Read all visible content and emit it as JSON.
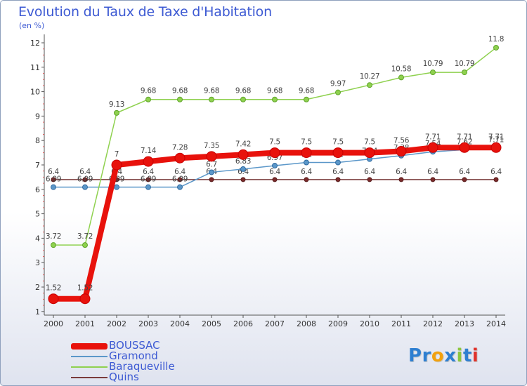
{
  "title": "Evolution du Taux de Taxe d'Habitation",
  "unit": "(en %)",
  "logo": {
    "text": "Proxiti",
    "letters": [
      {
        "ch": "P",
        "color": "#2e7fd1"
      },
      {
        "ch": "r",
        "color": "#2e7fd1"
      },
      {
        "ch": "o",
        "color": "#f2a10e"
      },
      {
        "ch": "x",
        "color": "#2e7fd1"
      },
      {
        "ch": "i",
        "color": "#8cc63f"
      },
      {
        "ch": "t",
        "color": "#2e7fd1"
      },
      {
        "ch": "i",
        "color": "#e0322b"
      }
    ]
  },
  "chart_data": {
    "type": "line",
    "title": "Evolution du Taux de Taxe d'Habitation",
    "ylabel": "(en %)",
    "x": [
      "2000",
      "2001",
      "2002",
      "2003",
      "2004",
      "2005",
      "2006",
      "2007",
      "2008",
      "2009",
      "2010",
      "2011",
      "2012",
      "2013",
      "2014"
    ],
    "yticks": [
      1,
      2,
      3,
      4,
      5,
      6,
      7,
      8,
      9,
      10,
      11,
      12
    ],
    "ylim": [
      1,
      12
    ],
    "grid": false,
    "legend_position": "bottom-left",
    "series": [
      {
        "name": "Quins",
        "color": "#7a3b3b",
        "values": [
          6.4,
          6.4,
          6.4,
          6.4,
          6.4,
          6.4,
          6.4,
          6.4,
          6.4,
          6.4,
          6.4,
          6.4,
          6.4,
          6.4,
          6.4
        ],
        "labels": [
          "6.4",
          "6.4",
          "6.4",
          "6.4",
          "6.4",
          "6.4",
          "6.4",
          "6.4",
          "6.4",
          "6.4",
          "6.4",
          "6.4",
          "6.4",
          "6.4",
          "6.4"
        ]
      },
      {
        "name": "Gramond",
        "color": "#5b97c9",
        "values": [
          6.09,
          6.09,
          6.09,
          6.09,
          6.09,
          6.7,
          6.83,
          6.97,
          7.1,
          7.1,
          7.24,
          7.38,
          7.54,
          7.62,
          7.71
        ],
        "labels": [
          "6.09",
          "6.09",
          "6.09",
          "6.09",
          "6.09",
          "6.7",
          "6.83",
          "6.97",
          "7.1",
          "7.1",
          "7.24",
          "7.38",
          "7.54",
          "7.62",
          "7.71"
        ]
      },
      {
        "name": "Baraqueville",
        "color": "#8fd14f",
        "values": [
          3.72,
          3.72,
          9.13,
          9.68,
          9.68,
          9.68,
          9.68,
          9.68,
          9.68,
          9.97,
          10.27,
          10.58,
          10.79,
          10.79,
          11.8
        ],
        "labels": [
          "3.72",
          "3.72",
          "9.13",
          "9.68",
          "9.68",
          "9.68",
          "9.68",
          "9.68",
          "9.68",
          "9.97",
          "10.27",
          "10.58",
          "10.79",
          "10.79",
          "11.8"
        ]
      },
      {
        "name": "BOUSSAC",
        "color": "#e8120c",
        "values": [
          1.52,
          1.52,
          7,
          7.14,
          7.28,
          7.35,
          7.42,
          7.5,
          7.5,
          7.5,
          7.5,
          7.56,
          7.71,
          7.71,
          7.71
        ],
        "labels": [
          "1.52",
          "1.52",
          "7",
          "7.14",
          "7.28",
          "7.35",
          "7.42",
          "7.5",
          "7.5",
          "7.5",
          "7.5",
          "7.56",
          "7.71",
          "7.71",
          "7.71"
        ]
      }
    ],
    "legend_order": [
      "BOUSSAC",
      "Gramond",
      "Baraqueville",
      "Quins"
    ]
  }
}
